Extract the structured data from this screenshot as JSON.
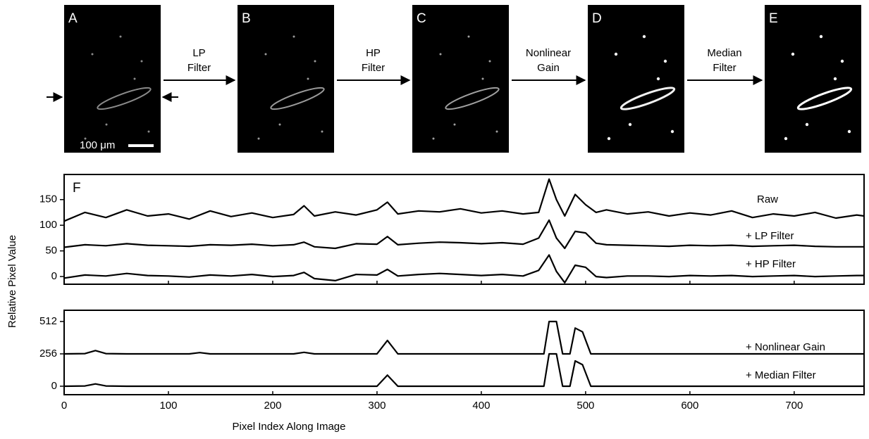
{
  "panels": [
    {
      "label": "A"
    },
    {
      "label": "B"
    },
    {
      "label": "C"
    },
    {
      "label": "D"
    },
    {
      "label": "E"
    }
  ],
  "steps": [
    {
      "lines": [
        "LP",
        "Filter"
      ]
    },
    {
      "lines": [
        "HP",
        "Filter"
      ]
    },
    {
      "lines": [
        "Nonlinear",
        "Gain"
      ]
    },
    {
      "lines": [
        "Median",
        "Filter"
      ]
    }
  ],
  "scale_bar": "100 μm",
  "chart_data": [
    {
      "type": "line",
      "annotation": "F",
      "ylabel": "Relative Pixel Value",
      "x": [
        0,
        20,
        40,
        60,
        80,
        100,
        120,
        140,
        160,
        180,
        200,
        220,
        230,
        240,
        260,
        280,
        300,
        310,
        320,
        340,
        360,
        380,
        400,
        420,
        440,
        455,
        465,
        472,
        480,
        490,
        500,
        510,
        520,
        540,
        560,
        580,
        600,
        620,
        640,
        660,
        680,
        700,
        720,
        740,
        760,
        767
      ],
      "series": [
        {
          "name": "Raw",
          "color": "#000000",
          "values": [
            108,
            125,
            115,
            130,
            118,
            122,
            112,
            128,
            117,
            124,
            115,
            121,
            138,
            118,
            126,
            120,
            130,
            145,
            122,
            128,
            126,
            132,
            124,
            128,
            122,
            125,
            190,
            150,
            118,
            160,
            140,
            125,
            130,
            122,
            126,
            118,
            124,
            120,
            128,
            115,
            122,
            118,
            125,
            114,
            120,
            118
          ]
        },
        {
          "name": "+ LP Filter",
          "color": "#000000",
          "values": [
            57,
            62,
            60,
            64,
            61,
            60,
            59,
            62,
            61,
            63,
            60,
            62,
            67,
            58,
            55,
            64,
            63,
            78,
            62,
            65,
            67,
            66,
            64,
            66,
            63,
            75,
            110,
            75,
            55,
            88,
            85,
            65,
            62,
            61,
            60,
            59,
            61,
            60,
            61,
            59,
            60,
            61,
            59,
            58,
            58,
            58
          ]
        },
        {
          "name": "+ HP Filter",
          "color": "#000000",
          "values": [
            -3,
            3,
            1,
            6,
            2,
            1,
            -1,
            3,
            1,
            4,
            0,
            2,
            8,
            -4,
            -8,
            4,
            3,
            14,
            1,
            4,
            6,
            4,
            2,
            4,
            1,
            12,
            42,
            10,
            -12,
            22,
            18,
            0,
            -2,
            1,
            1,
            0,
            2,
            1,
            2,
            0,
            1,
            2,
            0,
            1,
            2,
            2
          ]
        }
      ],
      "xlim": [
        0,
        767
      ],
      "xticks": [
        0,
        100,
        200,
        300,
        400,
        500,
        600,
        700
      ],
      "ylim": [
        -15,
        199
      ],
      "yticks": [
        0,
        50,
        100,
        150
      ]
    },
    {
      "type": "line",
      "xlabel": "Pixel Index Along Image",
      "x": [
        0,
        20,
        30,
        40,
        60,
        80,
        100,
        120,
        130,
        140,
        160,
        180,
        200,
        220,
        230,
        240,
        260,
        280,
        300,
        310,
        320,
        340,
        360,
        380,
        400,
        420,
        440,
        460,
        465,
        472,
        478,
        485,
        490,
        497,
        505,
        520,
        540,
        560,
        580,
        600,
        620,
        640,
        660,
        680,
        700,
        720,
        740,
        760,
        767
      ],
      "series": [
        {
          "name": "+ Nonlinear Gain",
          "color": "#000000",
          "values": [
            256,
            258,
            282,
            258,
            256,
            256,
            256,
            256,
            266,
            256,
            256,
            256,
            256,
            256,
            268,
            256,
            256,
            256,
            256,
            362,
            256,
            256,
            256,
            256,
            256,
            256,
            256,
            256,
            512,
            512,
            256,
            256,
            460,
            430,
            256,
            256,
            256,
            256,
            256,
            256,
            256,
            256,
            256,
            256,
            256,
            256,
            256,
            256,
            256
          ]
        },
        {
          "name": "+ Median Filter",
          "color": "#000000",
          "values": [
            0,
            2,
            18,
            2,
            0,
            0,
            0,
            0,
            0,
            0,
            0,
            0,
            0,
            0,
            0,
            0,
            0,
            0,
            0,
            88,
            0,
            0,
            0,
            0,
            0,
            0,
            0,
            0,
            256,
            256,
            0,
            0,
            200,
            170,
            0,
            0,
            0,
            0,
            0,
            0,
            0,
            0,
            0,
            0,
            0,
            0,
            0,
            0,
            0
          ]
        }
      ],
      "xlim": [
        0,
        767
      ],
      "xticks": [
        0,
        100,
        200,
        300,
        400,
        500,
        600,
        700
      ],
      "ylim": [
        -67,
        601
      ],
      "yticks": [
        0,
        256,
        512
      ]
    }
  ]
}
